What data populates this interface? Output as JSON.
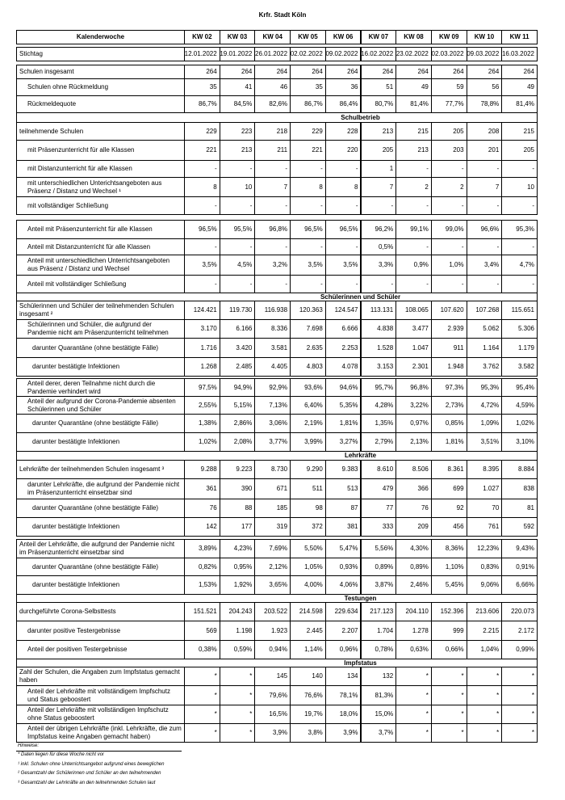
{
  "title": "Krfr. Stadt Köln",
  "table": {
    "header": {
      "label": "Kalenderwoche",
      "columns": [
        "KW 02",
        "KW 03",
        "KW 04",
        "KW 05",
        "KW 06",
        "KW 07",
        "KW 08",
        "KW 09",
        "KW 10",
        "KW 11"
      ]
    },
    "rows": [
      {
        "label": "Stichtag",
        "values": [
          "12.01.2022",
          "19.01.2022",
          "26.01.2022",
          "02.02.2022",
          "09.02.2022",
          "16.02.2022",
          "23.02.2022",
          "02.03.2022",
          "09.03.2022",
          "16.03.2022"
        ]
      },
      {
        "label": "Schulen insgesamt",
        "values": [
          "264",
          "264",
          "264",
          "264",
          "264",
          "264",
          "264",
          "264",
          "264",
          "264"
        ]
      },
      {
        "label": "Schulen ohne Rückmeldung",
        "values": [
          "35",
          "41",
          "46",
          "35",
          "36",
          "51",
          "49",
          "59",
          "56",
          "49"
        ]
      },
      {
        "label": "Rückmeldequote",
        "values": [
          "86,7%",
          "84,5%",
          "82,6%",
          "86,7%",
          "86,4%",
          "80,7%",
          "81,4%",
          "77,7%",
          "78,8%",
          "81,4%"
        ]
      },
      {
        "section": "Schulbetrieb"
      },
      {
        "label": "teilnehmende Schulen",
        "values": [
          "229",
          "223",
          "218",
          "229",
          "228",
          "213",
          "215",
          "205",
          "208",
          "215"
        ]
      },
      {
        "label": "mit Präsenzunterricht für alle Klassen",
        "values": [
          "221",
          "213",
          "211",
          "221",
          "220",
          "205",
          "213",
          "203",
          "201",
          "205"
        ]
      },
      {
        "label": "mit Distanzunterricht für alle Klassen",
        "values": [
          "-",
          "-",
          "-",
          "-",
          "-",
          "1",
          "-",
          "-",
          "-",
          "-"
        ]
      },
      {
        "label": "mit unterschiedlichen Unterichtsangeboten aus Präsenz / Distanz und Wechsel ¹",
        "values": [
          "8",
          "10",
          "7",
          "8",
          "8",
          "7",
          "2",
          "2",
          "7",
          "10"
        ]
      },
      {
        "label": "mit vollständiger Schließung",
        "values": [
          "-",
          "-",
          "-",
          "-",
          "-",
          "-",
          "-",
          "-",
          "-",
          "-"
        ]
      },
      {
        "label": "Anteil mit Präsenzunterricht für alle Klassen",
        "values": [
          "96,5%",
          "95,5%",
          "96,8%",
          "96,5%",
          "96,5%",
          "96,2%",
          "99,1%",
          "99,0%",
          "96,6%",
          "95,3%"
        ]
      },
      {
        "label": "Anteil mit Distanzunterricht für alle Klassen",
        "values": [
          "-",
          "-",
          "-",
          "-",
          "-",
          "0,5%",
          "-",
          "-",
          "-",
          "-"
        ]
      },
      {
        "label": "Anteil mit unterschiedlichen Unterrichtsangeboten aus Präsenz / Distanz und Wechsel",
        "values": [
          "3,5%",
          "4,5%",
          "3,2%",
          "3,5%",
          "3,5%",
          "3,3%",
          "0,9%",
          "1,0%",
          "3,4%",
          "4,7%"
        ]
      },
      {
        "label": "Anteil mit vollständiger Schließung",
        "values": [
          "-",
          "-",
          "-",
          "-",
          "-",
          "-",
          "-",
          "-",
          "-",
          "-"
        ]
      },
      {
        "section": "Schülerinnen und Schüler"
      },
      {
        "label": "Schülerinnen und Schüler der teilnehmenden Schulen insgesamt ²",
        "values": [
          "124.421",
          "119.730",
          "116.938",
          "120.363",
          "124.547",
          "113.131",
          "108.065",
          "107.620",
          "107.268",
          "115.651"
        ]
      },
      {
        "label": "Schülerinnen und Schüler, die aufgrund der Pandemie nicht am Präsenzunterricht teilnehmen",
        "values": [
          "3.170",
          "6.166",
          "8.336",
          "7.698",
          "6.666",
          "4.838",
          "3.477",
          "2.939",
          "5.062",
          "5.306"
        ]
      },
      {
        "label": "darunter Quarantäne (ohne bestätigte Fälle)",
        "values": [
          "1.716",
          "3.420",
          "3.581",
          "2.635",
          "2.253",
          "1.528",
          "1.047",
          "911",
          "1.164",
          "1.179"
        ]
      },
      {
        "label": "darunter bestätigte Infektionen",
        "values": [
          "1.268",
          "2.485",
          "4.405",
          "4.803",
          "4.078",
          "3.153",
          "2.301",
          "1.948",
          "3.762",
          "3.582"
        ]
      },
      {
        "label": "Anteil derer, deren Teilnahme nicht durch die Pandemie verhindert wird",
        "values": [
          "97,5%",
          "94,9%",
          "92,9%",
          "93,6%",
          "94,6%",
          "95,7%",
          "96,8%",
          "97,3%",
          "95,3%",
          "95,4%"
        ]
      },
      {
        "label": "Anteil der aufgrund der Corona-Pandemie absenten Schülerinnen und Schüler",
        "values": [
          "2,55%",
          "5,15%",
          "7,13%",
          "6,40%",
          "5,35%",
          "4,28%",
          "3,22%",
          "2,73%",
          "4,72%",
          "4,59%"
        ]
      },
      {
        "label": "darunter Quarantäne (ohne bestätigte Fälle)",
        "values": [
          "1,38%",
          "2,86%",
          "3,06%",
          "2,19%",
          "1,81%",
          "1,35%",
          "0,97%",
          "0,85%",
          "1,09%",
          "1,02%"
        ]
      },
      {
        "label": "darunter bestätigte Infektionen",
        "values": [
          "1,02%",
          "2,08%",
          "3,77%",
          "3,99%",
          "3,27%",
          "2,79%",
          "2,13%",
          "1,81%",
          "3,51%",
          "3,10%"
        ]
      },
      {
        "section": "Lehrkräfte"
      },
      {
        "label": "Lehrkräfte der teilnehmenden Schulen insgesamt ³",
        "values": [
          "9.288",
          "9.223",
          "8.730",
          "9.290",
          "9.383",
          "8.610",
          "8.506",
          "8.361",
          "8.395",
          "8.884"
        ]
      },
      {
        "label": "darunter Lehrkräfte, die aufgrund der Pandemie nicht im Präsenzunterricht einsetzbar sind",
        "values": [
          "361",
          "390",
          "671",
          "511",
          "513",
          "479",
          "366",
          "699",
          "1.027",
          "838"
        ]
      },
      {
        "label": "darunter Quarantäne (ohne bestätigte Fälle)",
        "values": [
          "76",
          "88",
          "185",
          "98",
          "87",
          "77",
          "76",
          "92",
          "70",
          "81"
        ]
      },
      {
        "label": "darunter bestätigte Infektionen",
        "values": [
          "142",
          "177",
          "319",
          "372",
          "381",
          "333",
          "209",
          "456",
          "761",
          "592"
        ]
      },
      {
        "label": "Anteil der Lehrkräfte, die aufgrund der Pandemie nicht im Präsenzunterricht einsetzbar sind",
        "values": [
          "3,89%",
          "4,23%",
          "7,69%",
          "5,50%",
          "5,47%",
          "5,56%",
          "4,30%",
          "8,36%",
          "12,23%",
          "9,43%"
        ]
      },
      {
        "label": "darunter Quarantäne (ohne bestätigte Fälle)",
        "values": [
          "0,82%",
          "0,95%",
          "2,12%",
          "1,05%",
          "0,93%",
          "0,89%",
          "0,89%",
          "1,10%",
          "0,83%",
          "0,91%"
        ]
      },
      {
        "label": "darunter bestätigte Infektionen",
        "values": [
          "1,53%",
          "1,92%",
          "3,65%",
          "4,00%",
          "4,06%",
          "3,87%",
          "2,46%",
          "5,45%",
          "9,06%",
          "6,66%"
        ]
      },
      {
        "section": "Testungen"
      },
      {
        "label": "durchgeführte Corona-Selbsttests",
        "values": [
          "151.521",
          "204.243",
          "203.522",
          "214.598",
          "229.634",
          "217.123",
          "204.110",
          "152.396",
          "213.606",
          "220.073"
        ]
      },
      {
        "label": "darunter positive Testergebnisse",
        "values": [
          "569",
          "1.198",
          "1.923",
          "2.445",
          "2.207",
          "1.704",
          "1.278",
          "999",
          "2.215",
          "2.172"
        ]
      },
      {
        "label": "Anteil der positiven Testergebnisse",
        "values": [
          "0,38%",
          "0,59%",
          "0,94%",
          "1,14%",
          "0,96%",
          "0,78%",
          "0,63%",
          "0,66%",
          "1,04%",
          "0,99%"
        ]
      },
      {
        "section": "Impfstatus"
      },
      {
        "label": "Zahl der Schulen, die Angaben zum Impfstatus gemacht haben",
        "values": [
          "*",
          "*",
          "145",
          "140",
          "134",
          "132",
          "*",
          "*",
          "*",
          "*"
        ]
      },
      {
        "label": "Anteil der Lehrkräfte mit vollständigem Impfschutz und Status geboostert",
        "values": [
          "*",
          "*",
          "79,6%",
          "76,6%",
          "78,1%",
          "81,3%",
          "*",
          "*",
          "*",
          "*"
        ]
      },
      {
        "label": "Anteil der Lehrkräfte mit vollständigen Impfschutz ohne Status geboostert",
        "values": [
          "*",
          "*",
          "16,5%",
          "19,7%",
          "18,0%",
          "15,0%",
          "*",
          "*",
          "*",
          "*"
        ]
      },
      {
        "label": "Anteil der übrigen Lehrkräfte (inkl. Lehrkräfte, die zum Impfstatus keine Angaben gemacht haben)",
        "values": [
          "*",
          "*",
          "3,9%",
          "3,8%",
          "3,9%",
          "3,7%",
          "*",
          "*",
          "*",
          "*"
        ]
      }
    ]
  },
  "notes": {
    "heading": "Hinweise:",
    "items": [
      "* Daten liegen für diese Woche nicht vor",
      "¹ inkl. Schulen ohne Unterrichtsangebot aufgrund eines beweglichen",
      "² Gesamtzahl der Schülerinnen und Schüler an den teilnehmenden",
      "³ Gesamtzahl der Lehrkräfte an den teilnehmenden Schulen laut"
    ]
  }
}
